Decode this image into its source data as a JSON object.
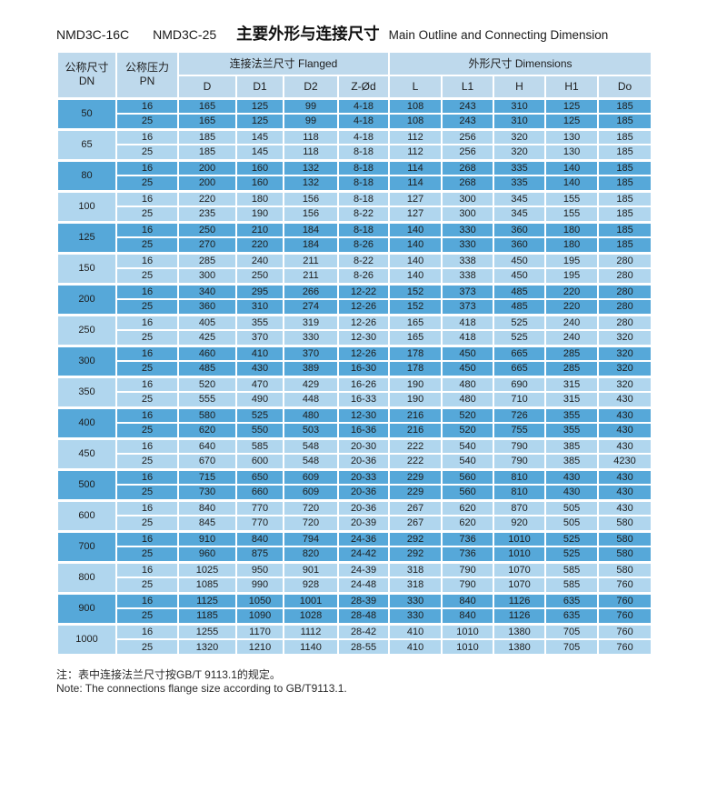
{
  "title": {
    "model1": "NMD3C-16C",
    "model2": "NMD3C-25",
    "zh": "主要外形与连接尺寸",
    "en": "Main Outline and Connecting Dimension"
  },
  "table": {
    "head": {
      "dn_zh": "公称尺寸",
      "dn_en": "DN",
      "pn_zh": "公称压力",
      "pn_en": "PN",
      "flanged_group": "连接法兰尺寸 Flanged",
      "dimensions_group": "外形尺寸 Dimensions",
      "sub_cols": [
        "D",
        "D1",
        "D2",
        "Z-Ød",
        "L",
        "L1",
        "H",
        "H1",
        "Do"
      ]
    },
    "groups": [
      {
        "dn": "50",
        "rows": [
          [
            "16",
            "165",
            "125",
            "99",
            "4-18",
            "108",
            "243",
            "310",
            "125",
            "185"
          ],
          [
            "25",
            "165",
            "125",
            "99",
            "4-18",
            "108",
            "243",
            "310",
            "125",
            "185"
          ]
        ]
      },
      {
        "dn": "65",
        "rows": [
          [
            "16",
            "185",
            "145",
            "118",
            "4-18",
            "112",
            "256",
            "320",
            "130",
            "185"
          ],
          [
            "25",
            "185",
            "145",
            "118",
            "8-18",
            "112",
            "256",
            "320",
            "130",
            "185"
          ]
        ]
      },
      {
        "dn": "80",
        "rows": [
          [
            "16",
            "200",
            "160",
            "132",
            "8-18",
            "114",
            "268",
            "335",
            "140",
            "185"
          ],
          [
            "25",
            "200",
            "160",
            "132",
            "8-18",
            "114",
            "268",
            "335",
            "140",
            "185"
          ]
        ]
      },
      {
        "dn": "100",
        "rows": [
          [
            "16",
            "220",
            "180",
            "156",
            "8-18",
            "127",
            "300",
            "345",
            "155",
            "185"
          ],
          [
            "25",
            "235",
            "190",
            "156",
            "8-22",
            "127",
            "300",
            "345",
            "155",
            "185"
          ]
        ]
      },
      {
        "dn": "125",
        "rows": [
          [
            "16",
            "250",
            "210",
            "184",
            "8-18",
            "140",
            "330",
            "360",
            "180",
            "185"
          ],
          [
            "25",
            "270",
            "220",
            "184",
            "8-26",
            "140",
            "330",
            "360",
            "180",
            "185"
          ]
        ]
      },
      {
        "dn": "150",
        "rows": [
          [
            "16",
            "285",
            "240",
            "211",
            "8-22",
            "140",
            "338",
            "450",
            "195",
            "280"
          ],
          [
            "25",
            "300",
            "250",
            "211",
            "8-26",
            "140",
            "338",
            "450",
            "195",
            "280"
          ]
        ]
      },
      {
        "dn": "200",
        "rows": [
          [
            "16",
            "340",
            "295",
            "266",
            "12-22",
            "152",
            "373",
            "485",
            "220",
            "280"
          ],
          [
            "25",
            "360",
            "310",
            "274",
            "12-26",
            "152",
            "373",
            "485",
            "220",
            "280"
          ]
        ]
      },
      {
        "dn": "250",
        "rows": [
          [
            "16",
            "405",
            "355",
            "319",
            "12-26",
            "165",
            "418",
            "525",
            "240",
            "280"
          ],
          [
            "25",
            "425",
            "370",
            "330",
            "12-30",
            "165",
            "418",
            "525",
            "240",
            "320"
          ]
        ]
      },
      {
        "dn": "300",
        "rows": [
          [
            "16",
            "460",
            "410",
            "370",
            "12-26",
            "178",
            "450",
            "665",
            "285",
            "320"
          ],
          [
            "25",
            "485",
            "430",
            "389",
            "16-30",
            "178",
            "450",
            "665",
            "285",
            "320"
          ]
        ]
      },
      {
        "dn": "350",
        "rows": [
          [
            "16",
            "520",
            "470",
            "429",
            "16-26",
            "190",
            "480",
            "690",
            "315",
            "320"
          ],
          [
            "25",
            "555",
            "490",
            "448",
            "16-33",
            "190",
            "480",
            "710",
            "315",
            "430"
          ]
        ]
      },
      {
        "dn": "400",
        "rows": [
          [
            "16",
            "580",
            "525",
            "480",
            "12-30",
            "216",
            "520",
            "726",
            "355",
            "430"
          ],
          [
            "25",
            "620",
            "550",
            "503",
            "16-36",
            "216",
            "520",
            "755",
            "355",
            "430"
          ]
        ]
      },
      {
        "dn": "450",
        "rows": [
          [
            "16",
            "640",
            "585",
            "548",
            "20-30",
            "222",
            "540",
            "790",
            "385",
            "430"
          ],
          [
            "25",
            "670",
            "600",
            "548",
            "20-36",
            "222",
            "540",
            "790",
            "385",
            "4230"
          ]
        ]
      },
      {
        "dn": "500",
        "rows": [
          [
            "16",
            "715",
            "650",
            "609",
            "20-33",
            "229",
            "560",
            "810",
            "430",
            "430"
          ],
          [
            "25",
            "730",
            "660",
            "609",
            "20-36",
            "229",
            "560",
            "810",
            "430",
            "430"
          ]
        ]
      },
      {
        "dn": "600",
        "rows": [
          [
            "16",
            "840",
            "770",
            "720",
            "20-36",
            "267",
            "620",
            "870",
            "505",
            "430"
          ],
          [
            "25",
            "845",
            "770",
            "720",
            "20-39",
            "267",
            "620",
            "920",
            "505",
            "580"
          ]
        ]
      },
      {
        "dn": "700",
        "rows": [
          [
            "16",
            "910",
            "840",
            "794",
            "24-36",
            "292",
            "736",
            "1010",
            "525",
            "580"
          ],
          [
            "25",
            "960",
            "875",
            "820",
            "24-42",
            "292",
            "736",
            "1010",
            "525",
            "580"
          ]
        ]
      },
      {
        "dn": "800",
        "rows": [
          [
            "16",
            "1025",
            "950",
            "901",
            "24-39",
            "318",
            "790",
            "1070",
            "585",
            "580"
          ],
          [
            "25",
            "1085",
            "990",
            "928",
            "24-48",
            "318",
            "790",
            "1070",
            "585",
            "760"
          ]
        ]
      },
      {
        "dn": "900",
        "rows": [
          [
            "16",
            "1125",
            "1050",
            "1001",
            "28-39",
            "330",
            "840",
            "1126",
            "635",
            "760"
          ],
          [
            "25",
            "1185",
            "1090",
            "1028",
            "28-48",
            "330",
            "840",
            "1126",
            "635",
            "760"
          ]
        ]
      },
      {
        "dn": "1000",
        "rows": [
          [
            "16",
            "1255",
            "1170",
            "1112",
            "28-42",
            "410",
            "1010",
            "1380",
            "705",
            "760"
          ],
          [
            "25",
            "1320",
            "1210",
            "1140",
            "28-55",
            "410",
            "1010",
            "1380",
            "705",
            "760"
          ]
        ]
      }
    ]
  },
  "notes": {
    "zh": "注：表中连接法兰尺寸按GB/T 9113.1的规定。",
    "en": "Note: The connections flange size according to GB/T9113.1."
  },
  "colors": {
    "band_dark": "#56a8d9",
    "band_light": "#b0d6ee",
    "header_bg": "#bed9ec",
    "text": "#222222"
  }
}
